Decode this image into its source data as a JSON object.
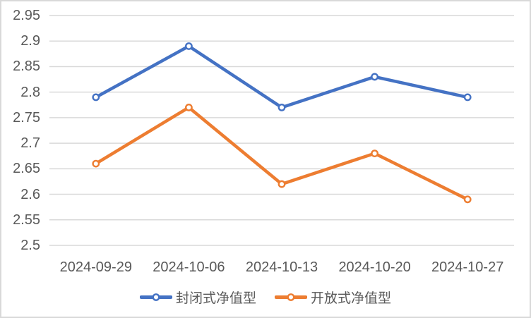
{
  "chart_data": {
    "type": "line",
    "title": "",
    "categories": [
      "2024-09-29",
      "2024-10-06",
      "2024-10-13",
      "2024-10-20",
      "2024-10-27"
    ],
    "series": [
      {
        "name": "封闭式净值型",
        "color": "#4472C4",
        "values": [
          2.79,
          2.89,
          2.77,
          2.83,
          2.79
        ]
      },
      {
        "name": "开放式净值型",
        "color": "#ED7D31",
        "values": [
          2.66,
          2.77,
          2.62,
          2.68,
          2.59
        ]
      }
    ],
    "ylim": [
      2.5,
      2.95
    ],
    "ytick_step": 0.05,
    "ytick_labels": [
      "2.95",
      "2.9",
      "2.85",
      "2.8",
      "2.75",
      "2.7",
      "2.65",
      "2.6",
      "2.55",
      "2.5"
    ],
    "grid": true,
    "legend_position": "bottom",
    "marker": "open-circle"
  },
  "style": {
    "gridline_color": "#D9D9D9",
    "border_color": "#D9D9D9",
    "text_color": "#595959",
    "background": "#FFFFFF"
  }
}
